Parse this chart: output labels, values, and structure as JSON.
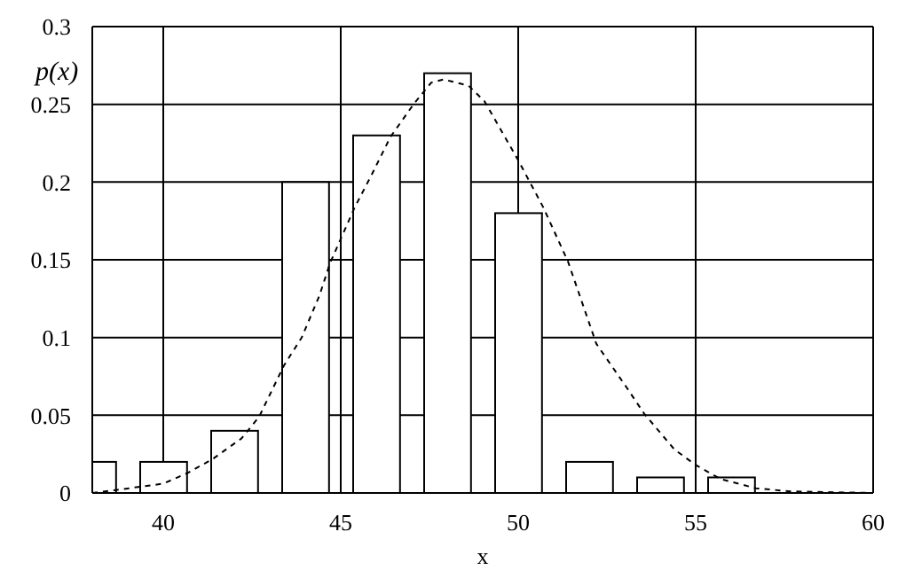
{
  "chart_data": {
    "type": "bar",
    "xlabel": "x",
    "ylabel": "p(x)",
    "x": [
      38,
      40,
      42,
      44,
      46,
      48,
      50,
      52,
      54,
      56
    ],
    "series": [
      {
        "color": "#000000",
        "values": [
          0.02,
          0.02,
          0.04,
          0.2,
          0.23,
          0.27,
          0.18,
          0.02,
          0.01,
          0.01
        ]
      },
      {
        "type": "line",
        "color": "#000000",
        "line_style": "dashed",
        "x": [
          38,
          38.7,
          40,
          40.7,
          41.4,
          42.2,
          42.7,
          43.4,
          43.9,
          44.4,
          44.7,
          45.4,
          45.9,
          46.4,
          47.05,
          47.55,
          47.9,
          48.6,
          49.05,
          50,
          50.7,
          51.4,
          52.2,
          53.05,
          53.55,
          54.4,
          55,
          55.7,
          56.7,
          57.7,
          60
        ],
        "values": [
          0,
          0.002,
          0.006,
          0.013,
          0.022,
          0.035,
          0.049,
          0.082,
          0.1,
          0.127,
          0.148,
          0.184,
          0.206,
          0.229,
          0.25,
          0.264,
          0.266,
          0.262,
          0.252,
          0.214,
          0.184,
          0.149,
          0.096,
          0.068,
          0.051,
          0.028,
          0.018,
          0.009,
          0.003,
          0.001,
          0
        ]
      }
    ],
    "xlim": [
      38,
      60
    ],
    "xticks": [
      40,
      45,
      50,
      55,
      60
    ],
    "ylim": [
      0,
      0.3
    ],
    "yticks": [
      0,
      0.05,
      0.1,
      0.15,
      0.2,
      0.25,
      0.3
    ],
    "grid": true,
    "marker": "none"
  }
}
